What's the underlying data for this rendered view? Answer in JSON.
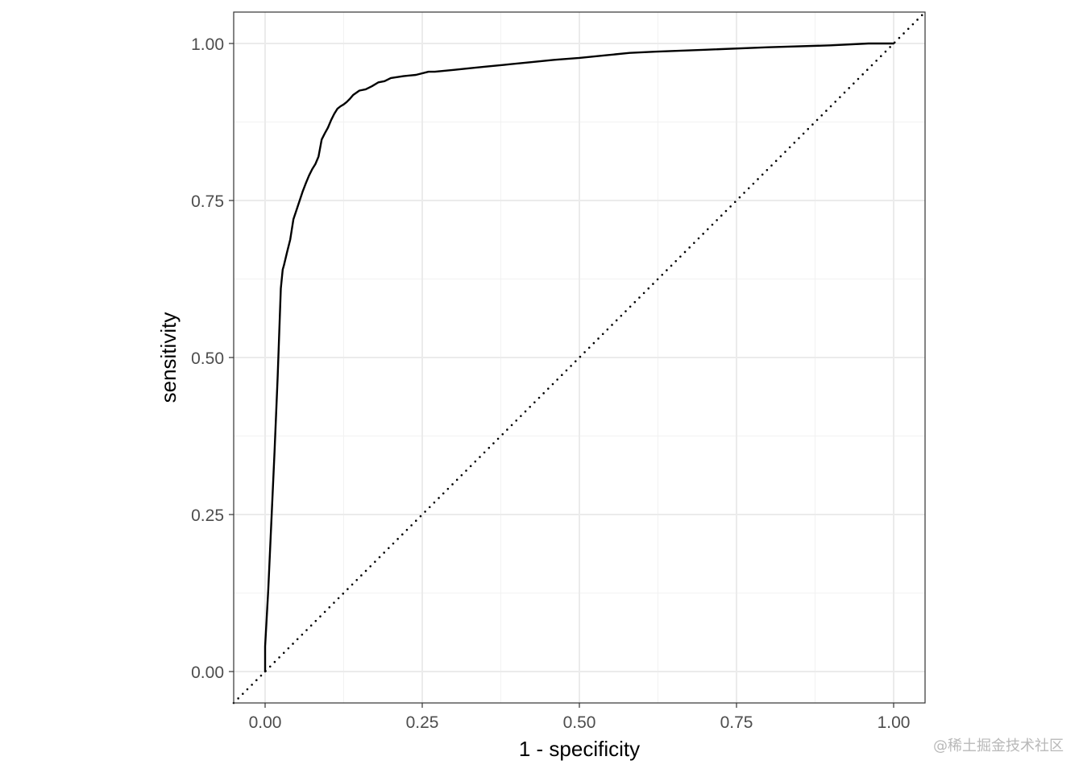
{
  "chart_data": {
    "type": "line",
    "title": "",
    "xlabel": "1 - specificity",
    "ylabel": "sensitivity",
    "xlim": [
      -0.05,
      1.05
    ],
    "ylim": [
      -0.05,
      1.05
    ],
    "x_ticks": [
      0.0,
      0.25,
      0.5,
      0.75,
      1.0
    ],
    "x_tick_labels": [
      "0.00",
      "0.25",
      "0.50",
      "0.75",
      "1.00"
    ],
    "y_ticks": [
      0.0,
      0.25,
      0.5,
      0.75,
      1.0
    ],
    "y_tick_labels": [
      "0.00",
      "0.25",
      "0.50",
      "0.75",
      "1.00"
    ],
    "grid": true,
    "legend": "none",
    "series": [
      {
        "style": "solid",
        "color": "#000000",
        "x": [
          0.0,
          0.0,
          0.0,
          0.005,
          0.01,
          0.015,
          0.02,
          0.025,
          0.028,
          0.03,
          0.035,
          0.04,
          0.045,
          0.05,
          0.055,
          0.06,
          0.065,
          0.07,
          0.075,
          0.08,
          0.085,
          0.09,
          0.095,
          0.1,
          0.105,
          0.11,
          0.115,
          0.12,
          0.125,
          0.13,
          0.135,
          0.14,
          0.15,
          0.16,
          0.17,
          0.18,
          0.19,
          0.2,
          0.22,
          0.24,
          0.26,
          0.27,
          0.3,
          0.32,
          0.35,
          0.38,
          0.42,
          0.46,
          0.5,
          0.54,
          0.58,
          0.6,
          0.62,
          0.7,
          0.8,
          0.9,
          0.96,
          1.0
        ],
        "y": [
          0.0,
          0.01,
          0.04,
          0.13,
          0.24,
          0.35,
          0.47,
          0.61,
          0.64,
          0.647,
          0.668,
          0.688,
          0.72,
          0.735,
          0.75,
          0.765,
          0.778,
          0.79,
          0.8,
          0.808,
          0.82,
          0.847,
          0.857,
          0.866,
          0.878,
          0.888,
          0.896,
          0.9,
          0.903,
          0.907,
          0.912,
          0.918,
          0.925,
          0.927,
          0.932,
          0.938,
          0.94,
          0.945,
          0.948,
          0.95,
          0.955,
          0.955,
          0.958,
          0.96,
          0.963,
          0.966,
          0.97,
          0.974,
          0.977,
          0.981,
          0.985,
          0.986,
          0.987,
          0.99,
          0.994,
          0.997,
          1.0,
          1.0
        ]
      },
      {
        "style": "dotted",
        "color": "#000000",
        "x": [
          -0.05,
          1.05
        ],
        "y": [
          -0.05,
          1.05
        ]
      }
    ]
  },
  "watermark": "@稀土掘金技术社区"
}
